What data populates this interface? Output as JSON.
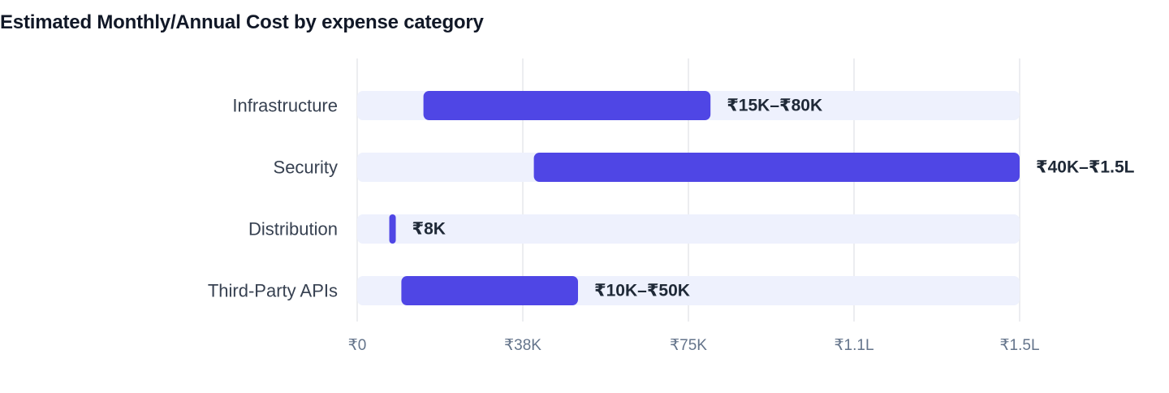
{
  "title": "Estimated Monthly/Annual Cost by expense category",
  "colors": {
    "bar": "#4f46e5",
    "track": "#eef1fd",
    "grid": "#e5e7eb",
    "category_text": "#374151",
    "value_text": "#1f2937",
    "tick_text": "#64748b"
  },
  "chart_data": {
    "type": "bar",
    "orientation": "horizontal",
    "style": "floating range bars",
    "categories": [
      "Infrastructure",
      "Security",
      "Distribution",
      "Third-Party APIs"
    ],
    "ranges": [
      [
        15000,
        80000
      ],
      [
        40000,
        150000
      ],
      [
        8000,
        8000
      ],
      [
        10000,
        50000
      ]
    ],
    "value_labels": [
      "₹15K–₹80K",
      "₹40K–₹1.5L",
      "₹8K",
      "₹10K–₹50K"
    ],
    "xlim": [
      0,
      150000
    ],
    "xticks": [
      0,
      37500,
      75000,
      112500,
      150000
    ],
    "xtick_labels": [
      "₹0",
      "₹38K",
      "₹75K",
      "₹1.1L",
      "₹1.5L"
    ],
    "grid": true,
    "legend": "none"
  }
}
